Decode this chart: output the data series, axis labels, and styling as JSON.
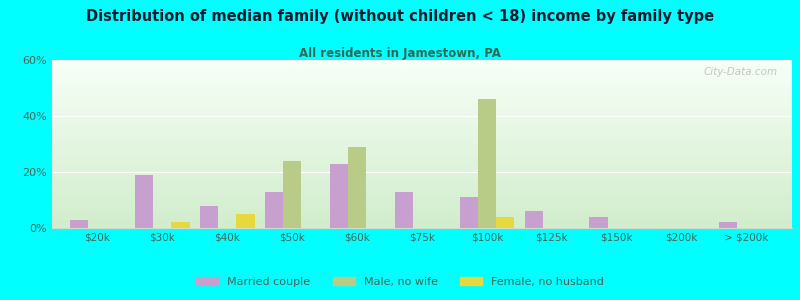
{
  "title": "Distribution of median family (without children < 18) income by family type",
  "subtitle": "All residents in Jamestown, PA",
  "categories": [
    "$20k",
    "$30k",
    "$40k",
    "$50k",
    "$60k",
    "$75k",
    "$100k",
    "$125k",
    "$150k",
    "$200k",
    "> $200k"
  ],
  "married_couple": [
    3,
    19,
    8,
    13,
    23,
    13,
    11,
    6,
    4,
    0,
    2
  ],
  "male_no_wife": [
    0,
    0,
    0,
    24,
    29,
    0,
    46,
    0,
    0,
    0,
    0
  ],
  "female_no_husband": [
    0,
    2,
    5,
    0,
    0,
    0,
    4,
    0,
    0,
    0,
    0
  ],
  "married_color": "#c8a0d0",
  "male_color": "#b8cc88",
  "female_color": "#e8d840",
  "ylim": [
    0,
    60
  ],
  "yticks": [
    0,
    20,
    40,
    60
  ],
  "ytick_labels": [
    "0%",
    "20%",
    "40%",
    "60%"
  ],
  "bg_color": "#00FFFF",
  "watermark": "City-Data.com",
  "bar_width": 0.28,
  "title_color": "#1a1a2e",
  "subtitle_color": "#336655",
  "tick_color": "#446655"
}
